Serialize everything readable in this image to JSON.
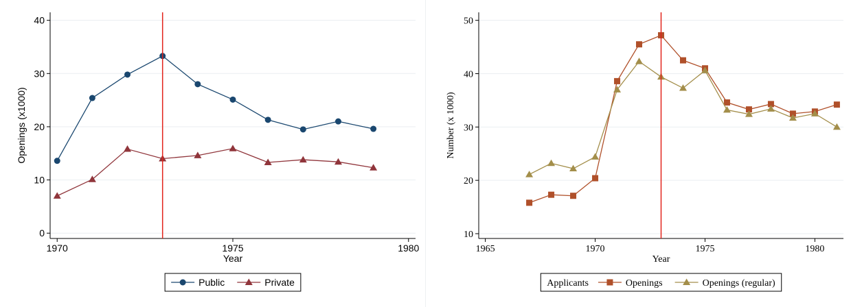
{
  "chart_data": [
    {
      "type": "line",
      "x": [
        1970,
        1971,
        1972,
        1973,
        1974,
        1975,
        1976,
        1977,
        1978,
        1979
      ],
      "xlim": [
        1969.8,
        1980.2
      ],
      "xticks": [
        1970,
        1975,
        1980
      ],
      "ylim": [
        -1,
        41.5
      ],
      "yticks": [
        0,
        10,
        20,
        30,
        40
      ],
      "xlabel": "Year",
      "ylabel": "Openings (x1000)",
      "grid": true,
      "legend": "bottom",
      "vline": 1973,
      "vline_color": "#e2231a",
      "series": [
        {
          "name": "Public",
          "color": "#1a476f",
          "marker": "circle",
          "values": [
            13.6,
            25.4,
            29.8,
            33.3,
            28.0,
            25.1,
            21.3,
            19.5,
            21.0,
            19.6
          ]
        },
        {
          "name": "Private",
          "color": "#90353b",
          "marker": "triangle",
          "values": [
            7.0,
            10.1,
            15.8,
            14.0,
            14.6,
            15.9,
            13.3,
            13.8,
            13.4,
            12.3
          ]
        }
      ]
    },
    {
      "type": "line",
      "x": [
        1967,
        1968,
        1969,
        1970,
        1971,
        1972,
        1973,
        1974,
        1975,
        1976,
        1977,
        1978,
        1979,
        1980,
        1981
      ],
      "xlim": [
        1964.7,
        1981.3
      ],
      "xticks": [
        1965,
        1970,
        1975,
        1980
      ],
      "ylim": [
        9.1,
        51.5
      ],
      "yticks": [
        10,
        20,
        30,
        40,
        50
      ],
      "xlabel": "Year",
      "ylabel": "Number (x 1000)",
      "grid": true,
      "legend": "bottom",
      "legend_title": "Applicants",
      "vline": 1973,
      "vline_color": "#e2231a",
      "series": [
        {
          "name": "Openings",
          "color": "#b0502a",
          "marker": "square",
          "values": [
            15.8,
            17.3,
            17.1,
            20.4,
            38.6,
            45.5,
            47.2,
            42.5,
            41.0,
            34.6,
            33.3,
            34.3,
            32.5,
            32.9,
            34.2
          ]
        },
        {
          "name": "Openings (regular)",
          "color": "#a38e4a",
          "marker": "triangle",
          "values": [
            21.1,
            23.2,
            22.2,
            24.4,
            37.0,
            42.3,
            39.4,
            37.3,
            40.6,
            33.2,
            32.4,
            33.4,
            31.7,
            32.5,
            30.0
          ]
        }
      ]
    }
  ]
}
